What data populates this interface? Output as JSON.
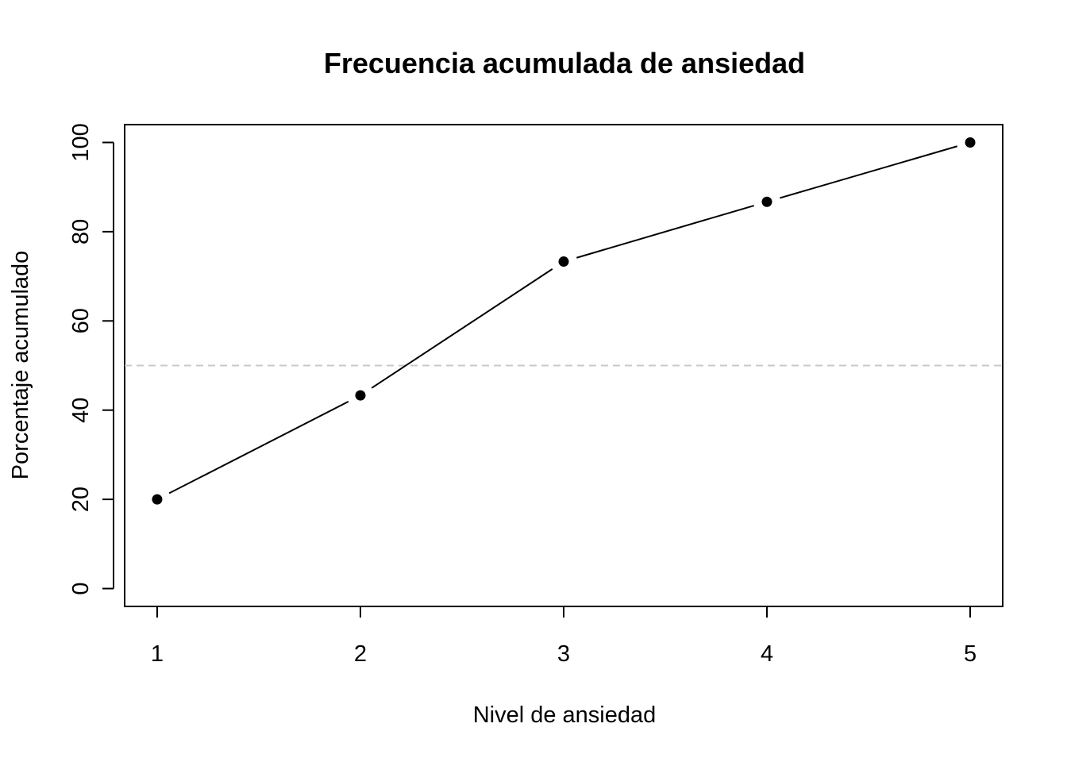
{
  "chart_data": {
    "type": "line",
    "title": "Frecuencia acumulada de ansiedad",
    "xlabel": "Nivel de ansiedad",
    "ylabel": "Porcentaje acumulado",
    "x": [
      1,
      2,
      3,
      4,
      5
    ],
    "xlim": [
      0.84,
      5.16
    ],
    "ylim": [
      -4,
      104
    ],
    "x_ticks": [
      "1",
      "2",
      "3",
      "4",
      "5"
    ],
    "y_ticks": [
      "0",
      "20",
      "40",
      "60",
      "80",
      "100"
    ],
    "series": [
      {
        "values": [
          20.0,
          43.3,
          73.3,
          86.7,
          100.0
        ],
        "color": "#000000",
        "marker": "filled-circle"
      }
    ],
    "reference_line": {
      "y": 50,
      "style": "dashed",
      "color": "#c8c8c8"
    },
    "grid": false,
    "legend": "none"
  }
}
